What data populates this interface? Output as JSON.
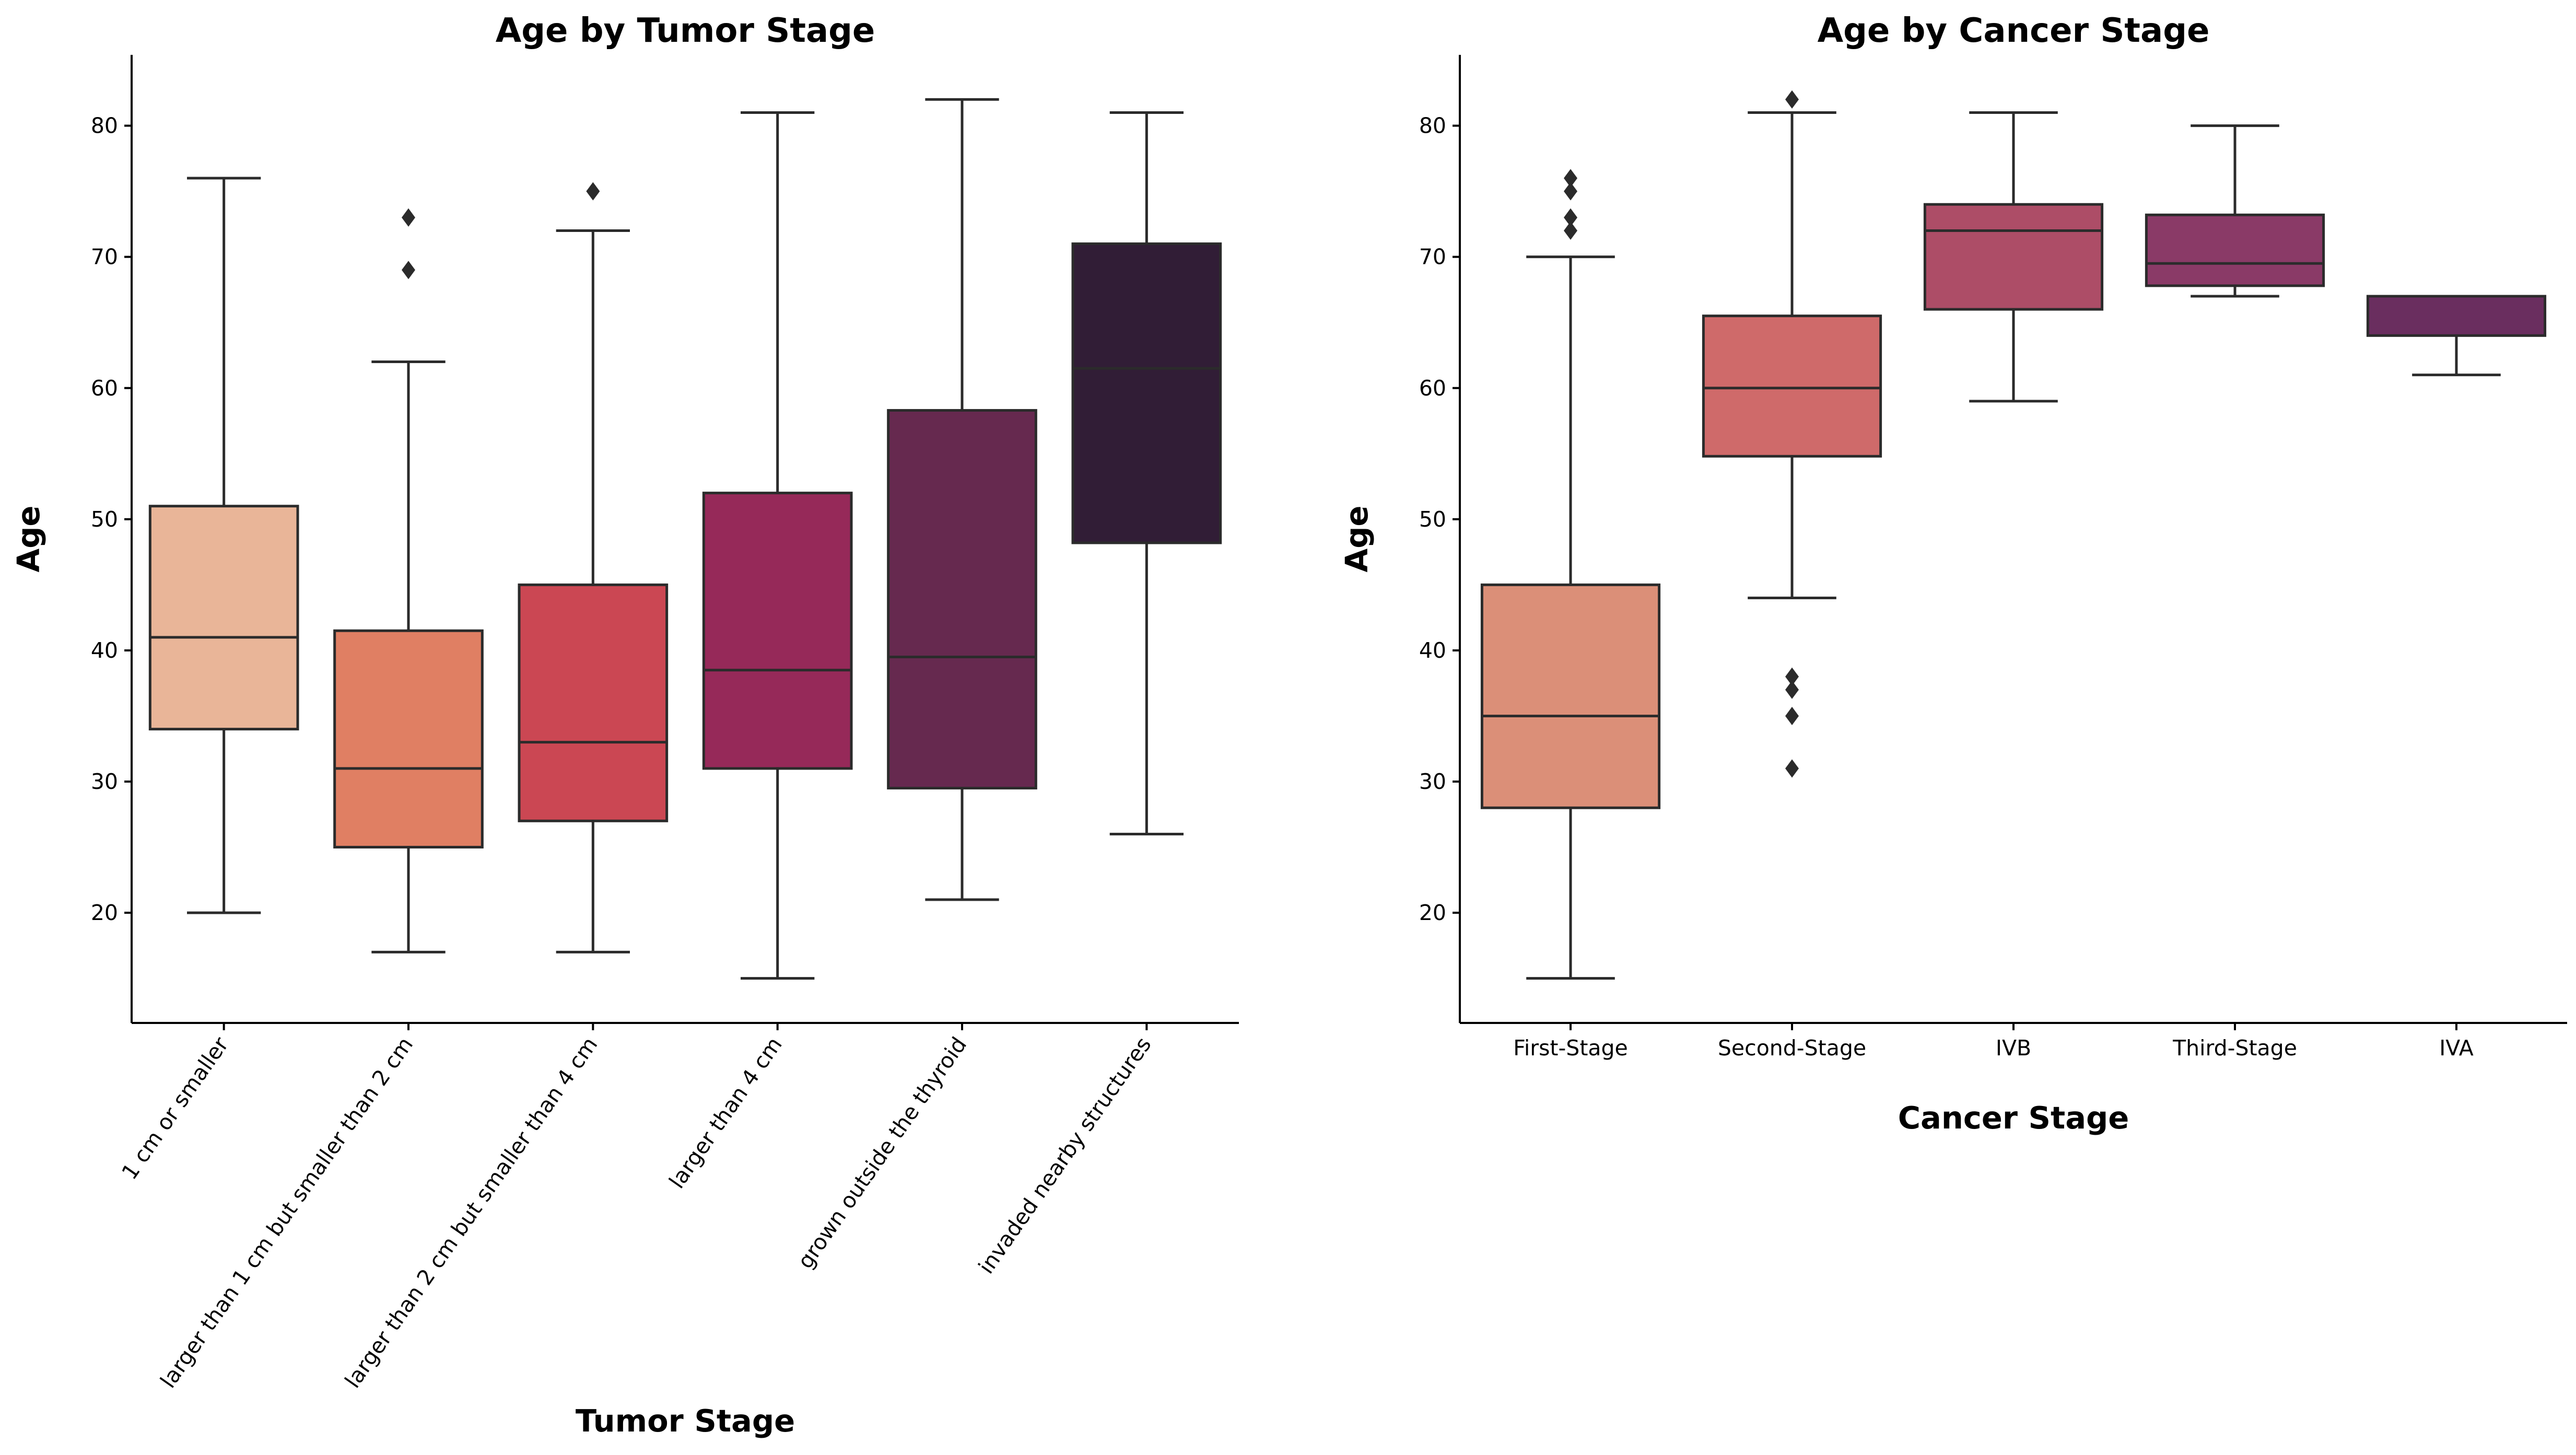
{
  "chart_data": [
    {
      "type": "box",
      "title": "Age by Tumor Stage",
      "xlabel": "Tumor Stage",
      "ylabel": "Age",
      "ylim": [
        11.6,
        85.4
      ],
      "yticks": [
        20,
        30,
        40,
        50,
        60,
        70,
        80
      ],
      "grid": false,
      "categories": [
        "1 cm or smaller",
        "larger than 1 cm but smaller than 2 cm",
        "larger than 2 cm but smaller than 4 cm",
        "larger than 4 cm",
        "grown outside the thyroid",
        "invaded nearby structures"
      ],
      "boxes": [
        {
          "whisker_low": 20,
          "q1": 34,
          "median": 41,
          "q3": 51,
          "whisker_high": 76,
          "outliers": [],
          "color": "#e9b598"
        },
        {
          "whisker_low": 17,
          "q1": 25,
          "median": 31,
          "q3": 41.5,
          "whisker_high": 62,
          "outliers": [
            69,
            73
          ],
          "color": "#e07f63"
        },
        {
          "whisker_low": 17,
          "q1": 27,
          "median": 33,
          "q3": 45,
          "whisker_high": 72,
          "outliers": [
            75
          ],
          "color": "#cb4753"
        },
        {
          "whisker_low": 15,
          "q1": 31,
          "median": 38.5,
          "q3": 52,
          "whisker_high": 81,
          "outliers": [],
          "color": "#962959"
        },
        {
          "whisker_low": 21,
          "q1": 29.5,
          "median": 39.5,
          "q3": 58.3,
          "whisker_high": 82,
          "outliers": [],
          "color": "#66294f"
        },
        {
          "whisker_low": 26,
          "q1": 48.2,
          "median": 61.5,
          "q3": 71,
          "whisker_high": 81,
          "outliers": [],
          "color": "#311d36"
        }
      ]
    },
    {
      "type": "box",
      "title": "Age by Cancer Stage",
      "xlabel": "Cancer Stage",
      "ylabel": "Age",
      "ylim": [
        11.6,
        85.4
      ],
      "yticks": [
        20,
        30,
        40,
        50,
        60,
        70,
        80
      ],
      "grid": false,
      "categories": [
        "First-Stage",
        "Second-Stage",
        "IVB",
        "Third-Stage",
        "IVA"
      ],
      "boxes": [
        {
          "whisker_low": 15,
          "q1": 28,
          "median": 35,
          "q3": 45,
          "whisker_high": 70,
          "outliers": [
            72,
            73,
            75,
            76
          ],
          "color": "#db8f78"
        },
        {
          "whisker_low": 44,
          "q1": 54.8,
          "median": 60,
          "q3": 65.5,
          "whisker_high": 81,
          "outliers": [
            31,
            35,
            37,
            38,
            82
          ],
          "color": "#cf6a6a"
        },
        {
          "whisker_low": 59,
          "q1": 66,
          "median": 72,
          "q3": 74,
          "whisker_high": 81,
          "outliers": [],
          "color": "#ad4d67"
        },
        {
          "whisker_low": 67,
          "q1": 67.8,
          "median": 69.5,
          "q3": 73.2,
          "whisker_high": 80,
          "outliers": [],
          "color": "#8a3a67"
        },
        {
          "whisker_low": 61,
          "q1": 64,
          "median": 67,
          "q3": 67,
          "whisker_high": 67,
          "outliers": [],
          "color": "#6a2e5f"
        }
      ]
    }
  ]
}
